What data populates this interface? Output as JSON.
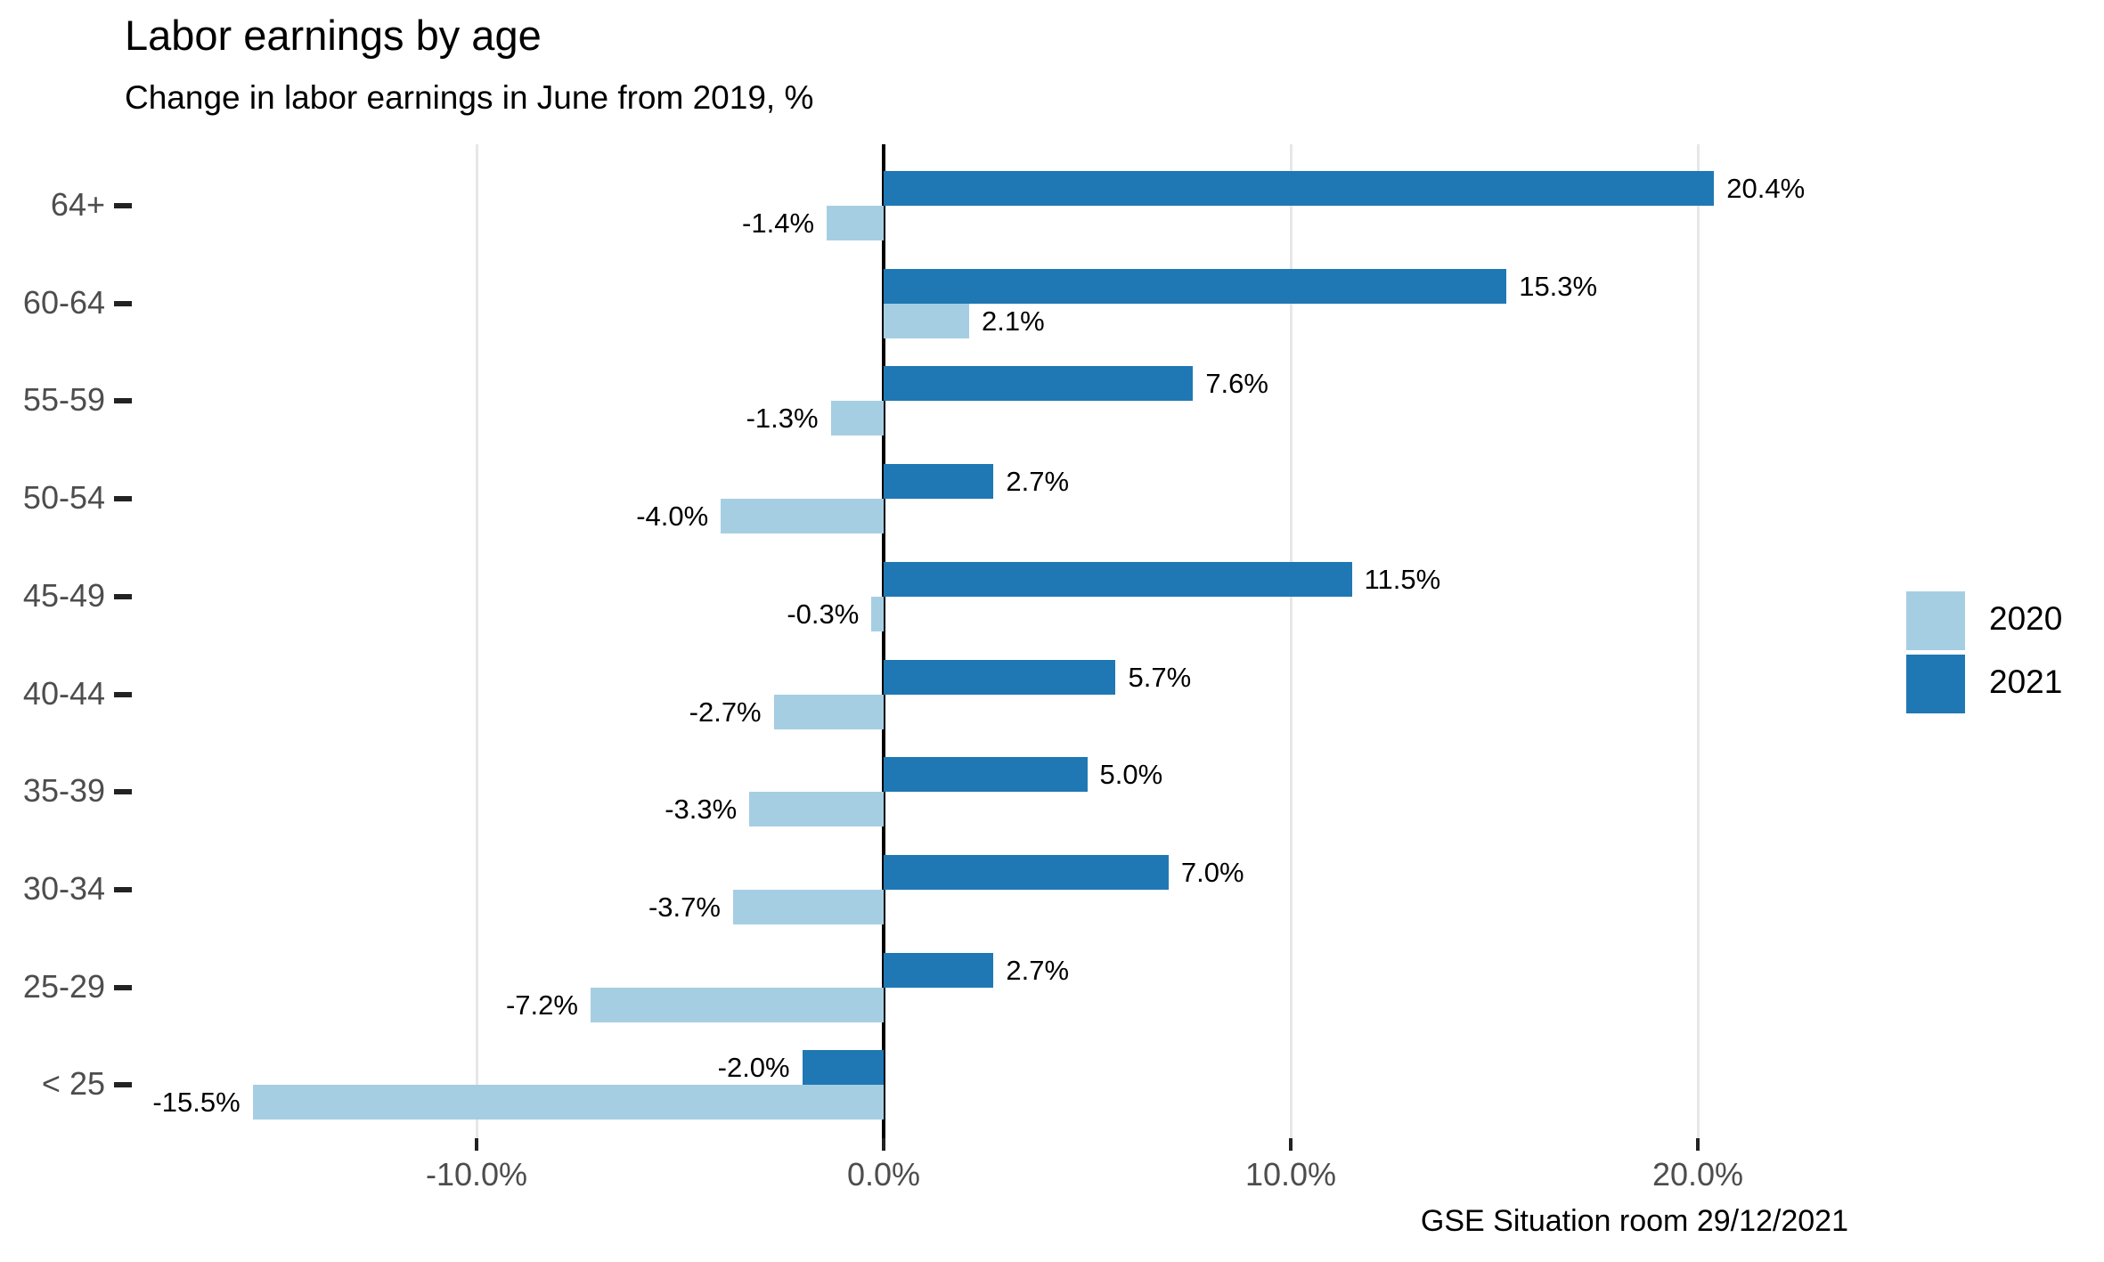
{
  "title": "Labor earnings by age",
  "subtitle": "Change in labor earnings in June from 2019, %",
  "caption": "GSE Situation room 29/12/2021",
  "colors": {
    "series_2020": "#A6CEE3",
    "series_2021": "#1F78B4",
    "gridline": "#E7E7E7",
    "zero_line": "#000000",
    "axis_text": "#4D4D4D",
    "label_text": "#000000",
    "background": "#FFFFFF"
  },
  "legend": {
    "position": "right",
    "items": [
      {
        "label": "2020",
        "color": "#A6CEE3"
      },
      {
        "label": "2021",
        "color": "#1F78B4"
      }
    ]
  },
  "x_axis": {
    "tick_values": [
      -10,
      0,
      10,
      20
    ],
    "tick_labels": [
      "-10.0%",
      "0.0%",
      "10.0%",
      "20.0%"
    ]
  },
  "chart_data": {
    "type": "bar",
    "orientation": "horizontal",
    "title": "Labor earnings by age",
    "subtitle": "Change in labor earnings in June from 2019, %",
    "caption": "GSE Situation room 29/12/2021",
    "categories": [
      "64+",
      "60-64",
      "55-59",
      "50-54",
      "45-49",
      "40-44",
      "35-39",
      "30-34",
      "25-29",
      "< 25"
    ],
    "series": [
      {
        "name": "2020",
        "color": "#A6CEE3",
        "values": [
          -1.4,
          2.1,
          -1.3,
          -4.0,
          -0.3,
          -2.7,
          -3.3,
          -3.7,
          -7.2,
          -15.5
        ],
        "labels": [
          "-1.4%",
          "2.1%",
          "-1.3%",
          "-4.0%",
          "-0.3%",
          "-2.7%",
          "-3.3%",
          "-3.7%",
          "-7.2%",
          "-15.5%"
        ]
      },
      {
        "name": "2021",
        "color": "#1F78B4",
        "values": [
          20.4,
          15.3,
          7.6,
          2.7,
          11.5,
          5.7,
          5.0,
          7.0,
          2.7,
          -2.0
        ],
        "labels": [
          "20.4%",
          "15.3%",
          "7.6%",
          "2.7%",
          "11.5%",
          "5.7%",
          "5.0%",
          "7.0%",
          "2.7%",
          "-2.0%"
        ]
      }
    ],
    "xlim": [
      -17.5,
      24
    ],
    "ylabel": "",
    "xlabel": "",
    "grid": "vertical major gridlines at -10%, 10%, 20%; solid black zero line",
    "legend_position": "right",
    "value_labels": "shown at bar ends"
  }
}
